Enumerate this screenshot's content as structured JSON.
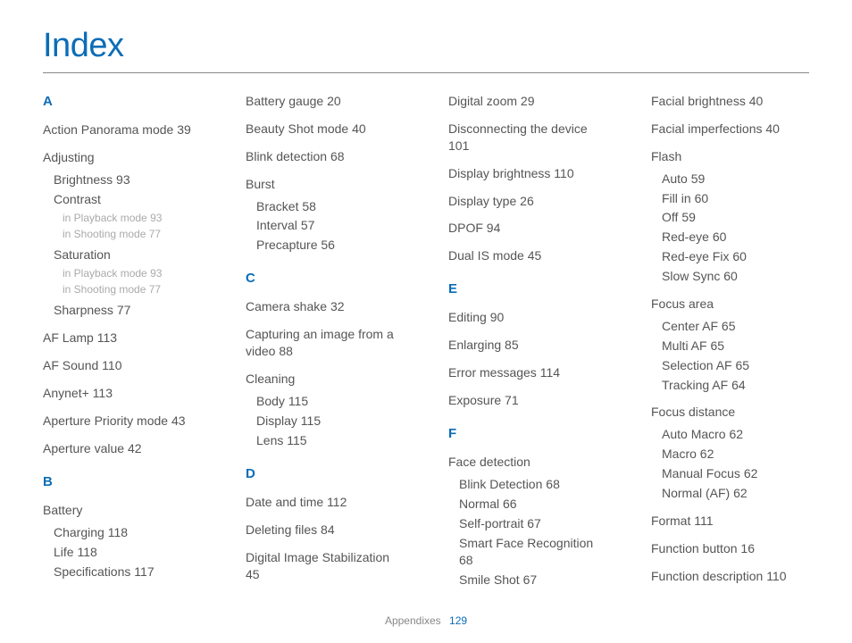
{
  "title": "Index",
  "footer": {
    "section": "Appendixes",
    "page": "129"
  },
  "columns": [
    {
      "blocks": [
        {
          "type": "letter",
          "text": "A"
        },
        {
          "type": "entry",
          "label": "Action Panorama mode",
          "page": "39"
        },
        {
          "type": "entry",
          "label": "Adjusting",
          "subs": [
            {
              "label": "Brightness",
              "page": "93"
            },
            {
              "label": "Contrast",
              "subs": [
                {
                  "label": "in Playback mode",
                  "page": "93"
                },
                {
                  "label": "in Shooting mode",
                  "page": "77"
                }
              ]
            },
            {
              "label": "Saturation",
              "subs": [
                {
                  "label": "in Playback mode",
                  "page": "93"
                },
                {
                  "label": "in Shooting mode",
                  "page": "77"
                }
              ]
            },
            {
              "label": "Sharpness",
              "page": "77"
            }
          ]
        },
        {
          "type": "entry",
          "label": "AF Lamp",
          "page": "113"
        },
        {
          "type": "entry",
          "label": "AF Sound",
          "page": "110"
        },
        {
          "type": "entry",
          "label": "Anynet+",
          "page": "113"
        },
        {
          "type": "entry",
          "label": "Aperture Priority mode",
          "page": "43"
        },
        {
          "type": "entry",
          "label": "Aperture value",
          "page": "42"
        },
        {
          "type": "letter",
          "text": "B"
        },
        {
          "type": "entry",
          "label": "Battery",
          "subs": [
            {
              "label": "Charging",
              "page": "118"
            },
            {
              "label": "Life",
              "page": "118"
            },
            {
              "label": "Specifications",
              "page": "117"
            }
          ]
        }
      ]
    },
    {
      "blocks": [
        {
          "type": "entry",
          "label": "Battery gauge",
          "page": "20"
        },
        {
          "type": "entry",
          "label": "Beauty Shot mode",
          "page": "40"
        },
        {
          "type": "entry",
          "label": "Blink detection",
          "page": "68"
        },
        {
          "type": "entry",
          "label": "Burst",
          "subs": [
            {
              "label": "Bracket",
              "page": "58"
            },
            {
              "label": "Interval",
              "page": "57"
            },
            {
              "label": "Precapture",
              "page": "56"
            }
          ]
        },
        {
          "type": "letter",
          "text": "C"
        },
        {
          "type": "entry",
          "label": "Camera shake",
          "page": "32"
        },
        {
          "type": "entry",
          "label": "Capturing an image from a video",
          "page": "88"
        },
        {
          "type": "entry",
          "label": "Cleaning",
          "subs": [
            {
              "label": "Body",
              "page": "115"
            },
            {
              "label": "Display",
              "page": "115"
            },
            {
              "label": "Lens",
              "page": "115"
            }
          ]
        },
        {
          "type": "letter",
          "text": "D"
        },
        {
          "type": "entry",
          "label": "Date and time",
          "page": "112"
        },
        {
          "type": "entry",
          "label": "Deleting files",
          "page": "84"
        },
        {
          "type": "entry",
          "label": "Digital Image Stabilization",
          "page": "45"
        }
      ]
    },
    {
      "blocks": [
        {
          "type": "entry",
          "label": "Digital zoom",
          "page": "29"
        },
        {
          "type": "entry",
          "label": "Disconnecting the device",
          "page": "101"
        },
        {
          "type": "entry",
          "label": "Display brightness",
          "page": "110"
        },
        {
          "type": "entry",
          "label": "Display type",
          "page": "26"
        },
        {
          "type": "entry",
          "label": "DPOF",
          "page": "94"
        },
        {
          "type": "entry",
          "label": "Dual IS mode",
          "page": "45"
        },
        {
          "type": "letter",
          "text": "E"
        },
        {
          "type": "entry",
          "label": "Editing",
          "page": "90"
        },
        {
          "type": "entry",
          "label": "Enlarging",
          "page": "85"
        },
        {
          "type": "entry",
          "label": "Error messages",
          "page": "114"
        },
        {
          "type": "entry",
          "label": "Exposure",
          "page": "71"
        },
        {
          "type": "letter",
          "text": "F"
        },
        {
          "type": "entry",
          "label": "Face detection",
          "subs": [
            {
              "label": "Blink Detection",
              "page": "68"
            },
            {
              "label": "Normal",
              "page": "66"
            },
            {
              "label": "Self-portrait",
              "page": "67"
            },
            {
              "label": "Smart Face Recognition",
              "page": "68"
            },
            {
              "label": "Smile Shot",
              "page": "67"
            }
          ]
        }
      ]
    },
    {
      "blocks": [
        {
          "type": "entry",
          "label": "Facial brightness",
          "page": "40"
        },
        {
          "type": "entry",
          "label": "Facial imperfections",
          "page": "40"
        },
        {
          "type": "entry",
          "label": "Flash",
          "subs": [
            {
              "label": "Auto",
              "page": "59"
            },
            {
              "label": "Fill in",
              "page": "60"
            },
            {
              "label": "Off",
              "page": "59"
            },
            {
              "label": "Red-eye",
              "page": "60"
            },
            {
              "label": "Red-eye Fix",
              "page": "60"
            },
            {
              "label": "Slow Sync",
              "page": "60"
            }
          ]
        },
        {
          "type": "entry",
          "label": "Focus area",
          "subs": [
            {
              "label": "Center AF",
              "page": "65"
            },
            {
              "label": "Multi AF",
              "page": "65"
            },
            {
              "label": "Selection AF",
              "page": "65"
            },
            {
              "label": "Tracking AF",
              "page": "64"
            }
          ]
        },
        {
          "type": "entry",
          "label": "Focus distance",
          "subs": [
            {
              "label": "Auto Macro",
              "page": "62"
            },
            {
              "label": "Macro",
              "page": "62"
            },
            {
              "label": "Manual Focus",
              "page": "62"
            },
            {
              "label": "Normal (AF)",
              "page": "62"
            }
          ]
        },
        {
          "type": "entry",
          "label": "Format",
          "page": "111"
        },
        {
          "type": "entry",
          "label": "Function button",
          "page": "16"
        },
        {
          "type": "entry",
          "label": "Function description",
          "page": "110"
        }
      ]
    }
  ]
}
